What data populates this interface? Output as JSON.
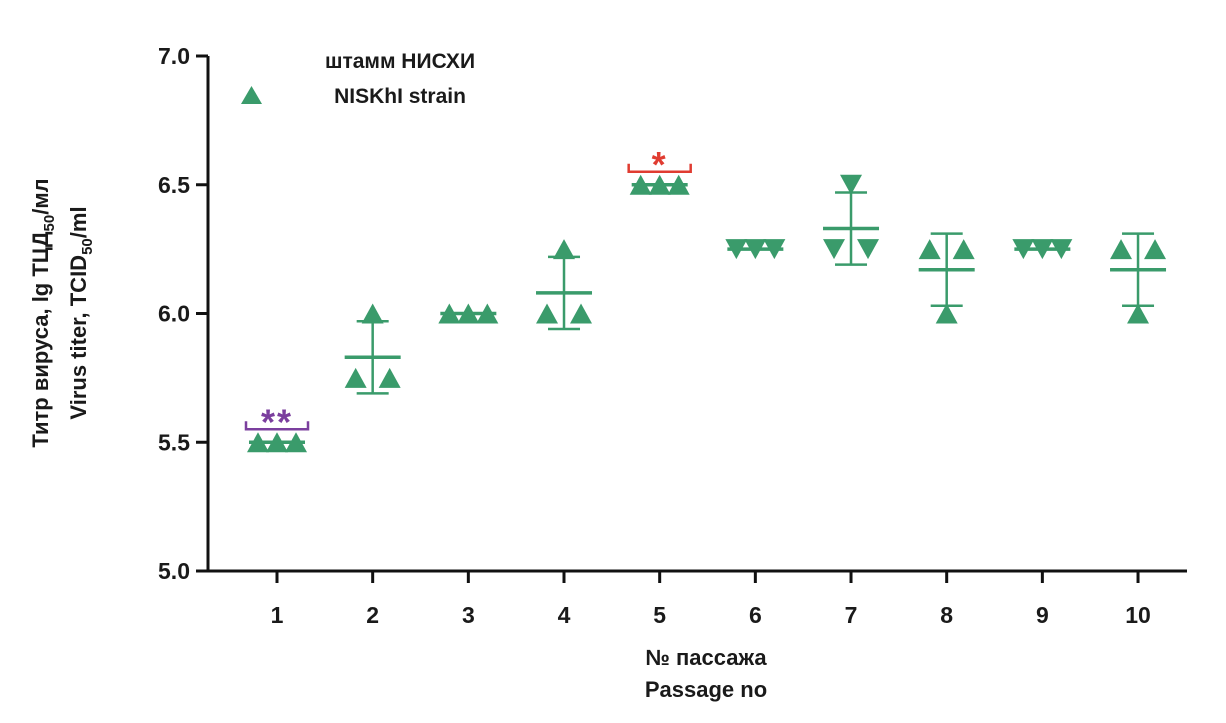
{
  "chart_data": {
    "type": "scatter",
    "title": "",
    "legend": {
      "line1": "штамм НИСХИ",
      "line2": "NISKhI strain",
      "placement": "top-left"
    },
    "ylabel": {
      "line1_pre": "Титр вируса, lg ТЦД",
      "line1_sub": "50",
      "line1_post": "/мл",
      "line2_pre": "Virus titer, TCID",
      "line2_sub": "50",
      "line2_post": "/ml"
    },
    "xlabel": {
      "line1": "№ пассажа",
      "line2": "Passage no"
    },
    "ylim": [
      5.0,
      7.0
    ],
    "yticks": [
      "5.0",
      "5.5",
      "6.0",
      "6.5",
      "7.0"
    ],
    "categories": [
      "1",
      "2",
      "3",
      "4",
      "5",
      "6",
      "7",
      "8",
      "9",
      "10"
    ],
    "series": [
      {
        "name": "NISKhI strain",
        "color": "#3a9b6b",
        "points": [
          {
            "passage": 1,
            "values": [
              5.5,
              5.5,
              5.5
            ],
            "mean": 5.5,
            "sd": 0,
            "marker": "up"
          },
          {
            "passage": 2,
            "values": [
              5.75,
              5.75,
              6.0
            ],
            "mean": 5.83,
            "sd": 0.14,
            "marker": "up"
          },
          {
            "passage": 3,
            "values": [
              6.0,
              6.0,
              6.0
            ],
            "mean": 6.0,
            "sd": 0,
            "marker": "up"
          },
          {
            "passage": 4,
            "values": [
              6.0,
              6.0,
              6.25
            ],
            "mean": 6.08,
            "sd": 0.14,
            "marker": "up"
          },
          {
            "passage": 5,
            "values": [
              6.5,
              6.5,
              6.5
            ],
            "mean": 6.5,
            "sd": 0,
            "marker": "up"
          },
          {
            "passage": 6,
            "values": [
              6.25,
              6.25,
              6.25
            ],
            "mean": 6.25,
            "sd": 0,
            "marker": "down"
          },
          {
            "passage": 7,
            "values": [
              6.25,
              6.25,
              6.5
            ],
            "mean": 6.33,
            "sd": 0.14,
            "marker": "down"
          },
          {
            "passage": 8,
            "values": [
              6.25,
              6.25,
              6.0
            ],
            "mean": 6.17,
            "sd": 0.14,
            "marker": "up"
          },
          {
            "passage": 9,
            "values": [
              6.25,
              6.25,
              6.25
            ],
            "mean": 6.25,
            "sd": 0,
            "marker": "down"
          },
          {
            "passage": 10,
            "values": [
              6.25,
              6.25,
              6.0
            ],
            "mean": 6.17,
            "sd": 0.14,
            "marker": "up"
          }
        ]
      }
    ],
    "annotations": [
      {
        "passage": 1,
        "text": "**",
        "color": "#7b3f9e"
      },
      {
        "passage": 5,
        "text": "*",
        "color": "#e03c31"
      }
    ]
  }
}
